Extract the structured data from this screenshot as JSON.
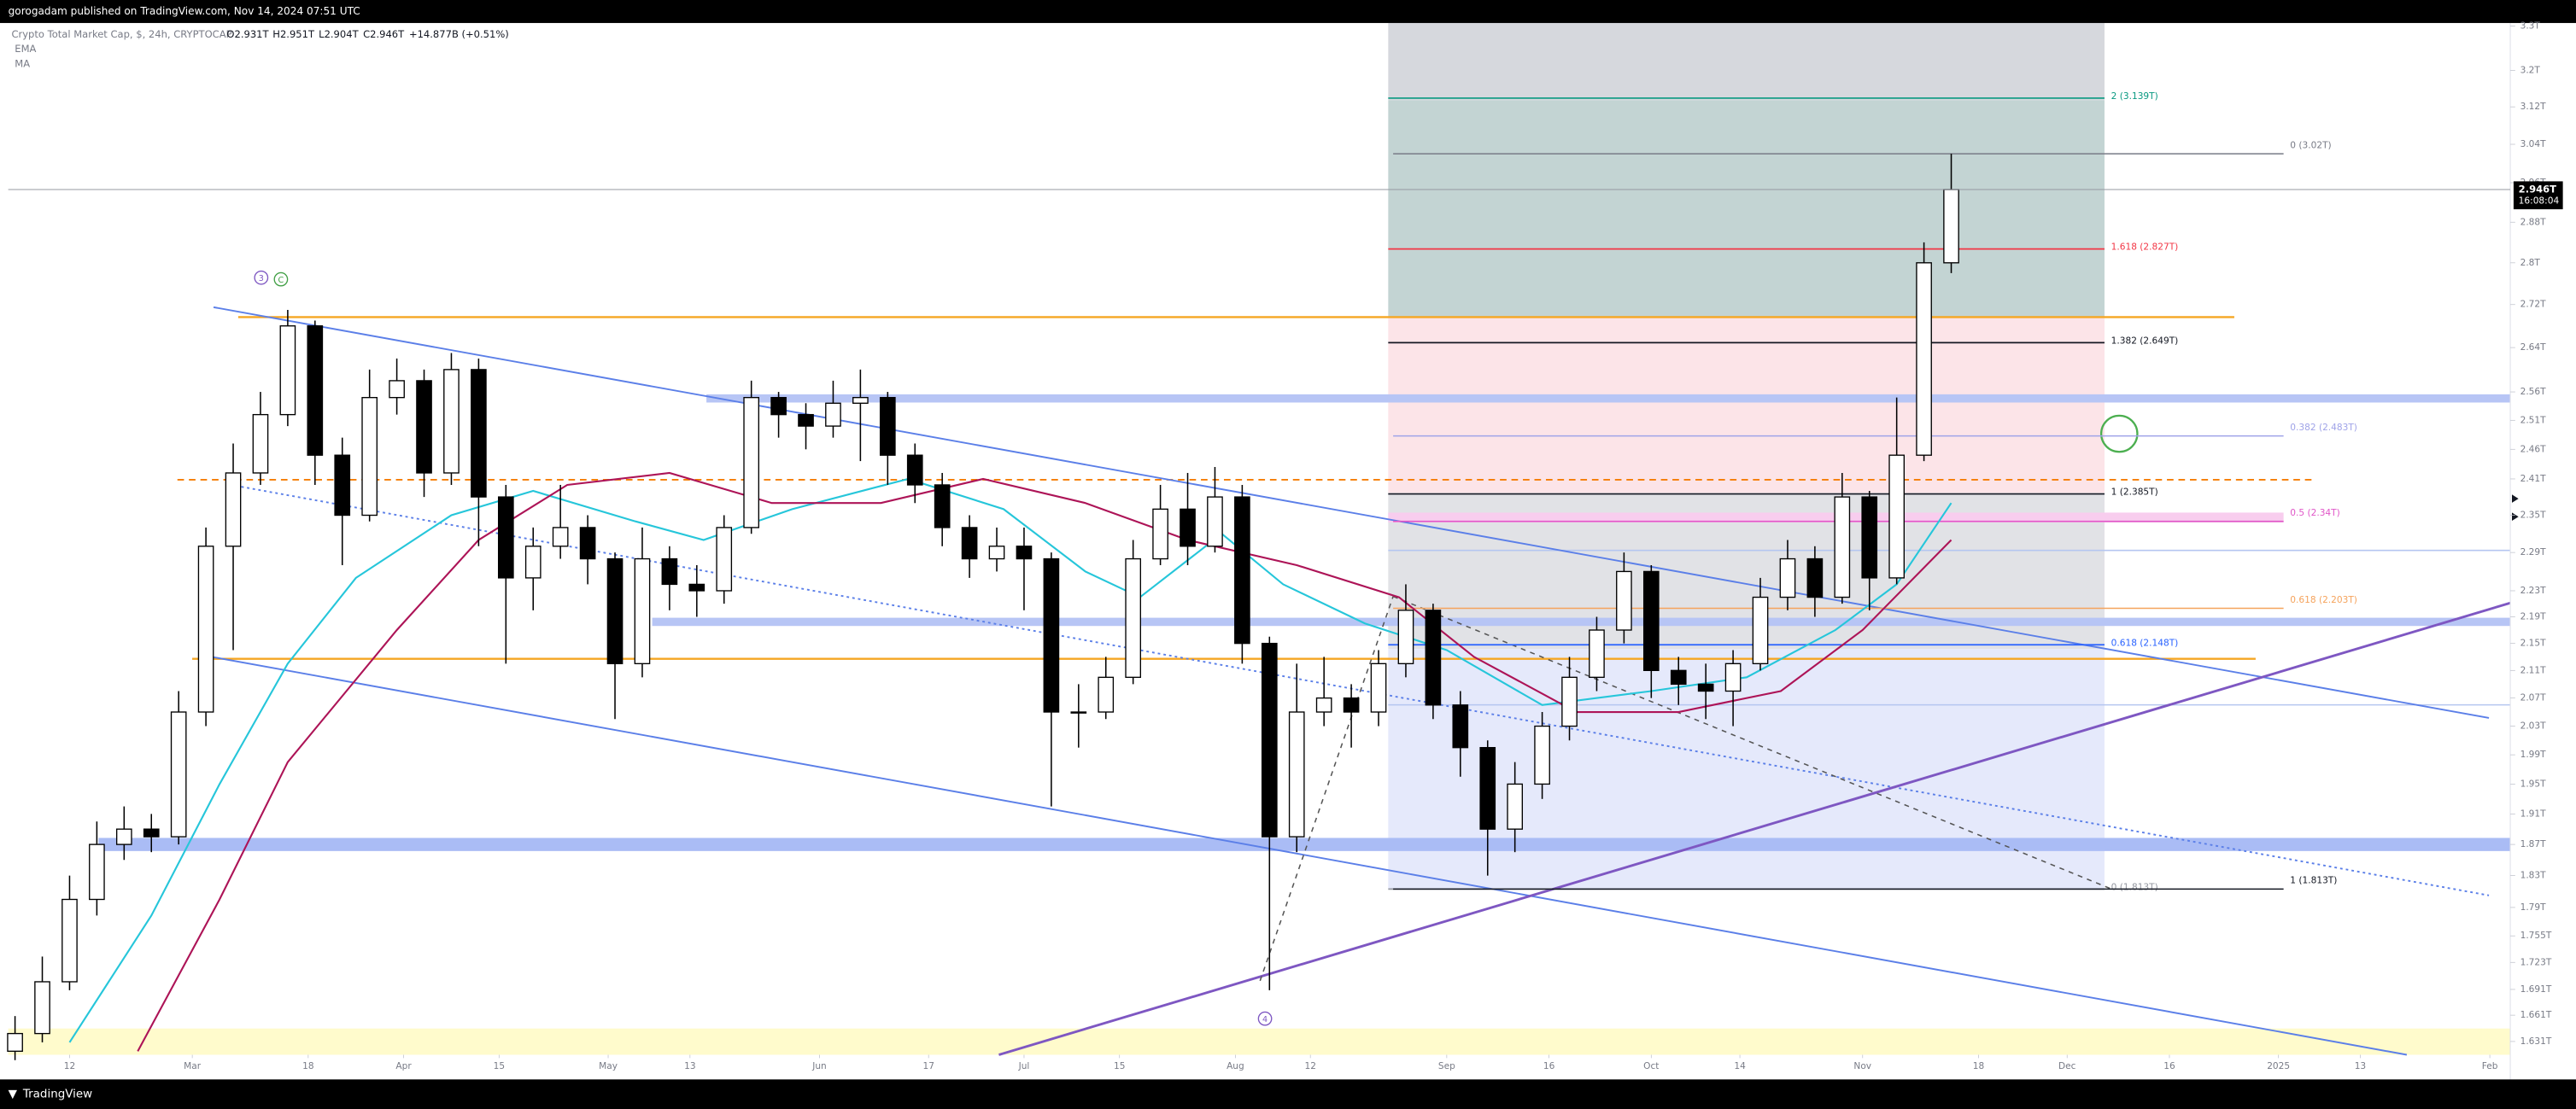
{
  "header": {
    "text": "gorogadam published on TradingView.com, Nov 14, 2024 07:51 UTC"
  },
  "footer": {
    "logo": "TradingView"
  },
  "chart_data": {
    "type": "candlestick",
    "title": "Crypto Total Market Cap, $, 24h, CRYPTOCAP",
    "ohlc_legend": [
      "O2.931T",
      "H2.951T",
      "L2.904T",
      "C2.946T",
      "+14.877B (+0.51%)"
    ],
    "x": [
      "2024-02-04",
      "2024-02-08",
      "2024-02-12",
      "2024-02-16",
      "2024-02-20",
      "2024-02-24",
      "2024-02-28",
      "2024-03-03",
      "2024-03-07",
      "2024-03-11",
      "2024-03-15",
      "2024-03-19",
      "2024-03-23",
      "2024-03-27",
      "2024-03-31",
      "2024-04-04",
      "2024-04-08",
      "2024-04-12",
      "2024-04-16",
      "2024-04-20",
      "2024-04-24",
      "2024-04-28",
      "2024-05-02",
      "2024-05-06",
      "2024-05-10",
      "2024-05-14",
      "2024-05-18",
      "2024-05-22",
      "2024-05-26",
      "2024-05-30",
      "2024-06-03",
      "2024-06-07",
      "2024-06-11",
      "2024-06-15",
      "2024-06-19",
      "2024-06-23",
      "2024-06-27",
      "2024-07-01",
      "2024-07-05",
      "2024-07-09",
      "2024-07-13",
      "2024-07-17",
      "2024-07-21",
      "2024-07-25",
      "2024-07-29",
      "2024-08-02",
      "2024-08-06",
      "2024-08-10",
      "2024-08-14",
      "2024-08-18",
      "2024-08-22",
      "2024-08-26",
      "2024-08-30",
      "2024-09-03",
      "2024-09-07",
      "2024-09-11",
      "2024-09-15",
      "2024-09-19",
      "2024-09-23",
      "2024-09-27",
      "2024-10-01",
      "2024-10-05",
      "2024-10-09",
      "2024-10-13",
      "2024-10-17",
      "2024-10-21",
      "2024-10-25",
      "2024-10-29",
      "2024-11-02",
      "2024-11-06",
      "2024-11-10",
      "2024-11-14"
    ],
    "open": [
      1.62,
      1.64,
      1.7,
      1.8,
      1.87,
      1.89,
      1.88,
      2.05,
      2.3,
      2.42,
      2.52,
      2.68,
      2.45,
      2.35,
      2.55,
      2.58,
      2.42,
      2.6,
      2.38,
      2.25,
      2.3,
      2.33,
      2.28,
      2.12,
      2.28,
      2.24,
      2.23,
      2.33,
      2.55,
      2.52,
      2.5,
      2.54,
      2.55,
      2.45,
      2.4,
      2.33,
      2.28,
      2.3,
      2.28,
      2.05,
      2.05,
      2.1,
      2.28,
      2.36,
      2.3,
      2.38,
      2.15,
      1.88,
      2.05,
      2.07,
      2.05,
      2.12,
      2.2,
      2.06,
      2.0,
      1.89,
      1.95,
      2.03,
      2.1,
      2.17,
      2.26,
      2.11,
      2.09,
      2.08,
      2.12,
      2.22,
      2.28,
      2.22,
      2.38,
      2.25,
      2.45,
      2.8
    ],
    "high": [
      1.66,
      1.73,
      1.83,
      1.9,
      1.92,
      1.91,
      2.08,
      2.33,
      2.47,
      2.56,
      2.71,
      2.69,
      2.48,
      2.6,
      2.62,
      2.6,
      2.63,
      2.62,
      2.4,
      2.33,
      2.4,
      2.35,
      2.29,
      2.33,
      2.3,
      2.27,
      2.35,
      2.58,
      2.56,
      2.54,
      2.58,
      2.6,
      2.56,
      2.47,
      2.42,
      2.35,
      2.33,
      2.33,
      2.29,
      2.09,
      2.13,
      2.31,
      2.4,
      2.42,
      2.43,
      2.4,
      2.16,
      2.12,
      2.13,
      2.09,
      2.14,
      2.24,
      2.21,
      2.08,
      2.01,
      1.98,
      2.05,
      2.13,
      2.19,
      2.29,
      2.27,
      2.13,
      2.12,
      2.14,
      2.25,
      2.31,
      2.3,
      2.42,
      2.39,
      2.55,
      2.84,
      3.02
    ],
    "low": [
      1.61,
      1.63,
      1.69,
      1.78,
      1.85,
      1.86,
      1.87,
      2.03,
      2.14,
      2.4,
      2.5,
      2.4,
      2.27,
      2.34,
      2.52,
      2.38,
      2.4,
      2.3,
      2.12,
      2.2,
      2.28,
      2.24,
      2.04,
      2.1,
      2.2,
      2.19,
      2.21,
      2.32,
      2.48,
      2.46,
      2.48,
      2.44,
      2.4,
      2.37,
      2.3,
      2.25,
      2.26,
      2.2,
      1.92,
      2.0,
      2.04,
      2.09,
      2.27,
      2.27,
      2.29,
      2.12,
      1.69,
      1.86,
      2.03,
      2.0,
      2.03,
      2.1,
      2.04,
      1.96,
      1.83,
      1.86,
      1.93,
      2.01,
      2.08,
      2.15,
      2.07,
      2.06,
      2.04,
      2.03,
      2.11,
      2.2,
      2.19,
      2.21,
      2.2,
      2.24,
      2.44,
      2.78
    ],
    "close": [
      1.64,
      1.7,
      1.8,
      1.87,
      1.89,
      1.88,
      2.05,
      2.3,
      2.42,
      2.52,
      2.68,
      2.45,
      2.35,
      2.55,
      2.58,
      2.42,
      2.6,
      2.38,
      2.25,
      2.3,
      2.33,
      2.28,
      2.12,
      2.28,
      2.24,
      2.23,
      2.33,
      2.55,
      2.52,
      2.5,
      2.54,
      2.55,
      2.45,
      2.4,
      2.33,
      2.28,
      2.3,
      2.28,
      2.05,
      2.05,
      2.1,
      2.28,
      2.36,
      2.3,
      2.38,
      2.15,
      1.88,
      2.05,
      2.07,
      2.05,
      2.12,
      2.2,
      2.06,
      2.0,
      1.89,
      1.95,
      2.03,
      2.1,
      2.17,
      2.26,
      2.11,
      2.09,
      2.08,
      2.12,
      2.22,
      2.28,
      2.22,
      2.38,
      2.25,
      2.45,
      2.8,
      2.946
    ],
    "up_color": "#ffffff",
    "down_color": "#000000",
    "indicators": [
      {
        "name": "EMA",
        "color": "#26c6da",
        "x": [
          "2024-02-12",
          "2024-02-24",
          "2024-03-05",
          "2024-03-15",
          "2024-03-25",
          "2024-04-08",
          "2024-04-20",
          "2024-05-05",
          "2024-05-15",
          "2024-05-28",
          "2024-06-14",
          "2024-06-28",
          "2024-07-10",
          "2024-07-18",
          "2024-07-30",
          "2024-08-08",
          "2024-08-20",
          "2024-09-01",
          "2024-09-15",
          "2024-10-01",
          "2024-10-15",
          "2024-10-28",
          "2024-11-06",
          "2024-11-14"
        ],
        "values": [
          1.63,
          1.78,
          1.95,
          2.12,
          2.25,
          2.35,
          2.39,
          2.34,
          2.31,
          2.36,
          2.41,
          2.36,
          2.26,
          2.22,
          2.32,
          2.24,
          2.18,
          2.14,
          2.06,
          2.08,
          2.1,
          2.17,
          2.24,
          2.37
        ]
      },
      {
        "name": "MA",
        "color": "#ad1457",
        "x": [
          "2024-02-22",
          "2024-03-05",
          "2024-03-15",
          "2024-03-31",
          "2024-04-12",
          "2024-04-25",
          "2024-05-10",
          "2024-05-25",
          "2024-06-10",
          "2024-06-25",
          "2024-07-10",
          "2024-07-25",
          "2024-08-10",
          "2024-08-25",
          "2024-09-05",
          "2024-09-20",
          "2024-10-05",
          "2024-10-20",
          "2024-11-01",
          "2024-11-14"
        ],
        "values": [
          1.62,
          1.8,
          1.98,
          2.17,
          2.31,
          2.4,
          2.42,
          2.37,
          2.37,
          2.41,
          2.37,
          2.31,
          2.27,
          2.22,
          2.13,
          2.05,
          2.05,
          2.08,
          2.17,
          2.31
        ]
      }
    ],
    "xlim": [
      "2024-02-03",
      "2025-02-04"
    ],
    "xticks": [
      {
        "value": "2024-02-12",
        "label": "12"
      },
      {
        "value": "2024-03-01",
        "label": "Mar"
      },
      {
        "value": "2024-03-18",
        "label": "18"
      },
      {
        "value": "2024-04-01",
        "label": "Apr"
      },
      {
        "value": "2024-04-15",
        "label": "15"
      },
      {
        "value": "2024-05-01",
        "label": "May"
      },
      {
        "value": "2024-05-13",
        "label": "13"
      },
      {
        "value": "2024-06-01",
        "label": "Jun"
      },
      {
        "value": "2024-06-17",
        "label": "17"
      },
      {
        "value": "2024-07-01",
        "label": "Jul"
      },
      {
        "value": "2024-07-15",
        "label": "15"
      },
      {
        "value": "2024-08-01",
        "label": "Aug"
      },
      {
        "value": "2024-08-12",
        "label": "12"
      },
      {
        "value": "2024-09-01",
        "label": "Sep"
      },
      {
        "value": "2024-09-16",
        "label": "16"
      },
      {
        "value": "2024-10-01",
        "label": "Oct"
      },
      {
        "value": "2024-10-14",
        "label": "14"
      },
      {
        "value": "2024-11-01",
        "label": "Nov"
      },
      {
        "value": "2024-11-18",
        "label": "18"
      },
      {
        "value": "2024-12-01",
        "label": "Dec"
      },
      {
        "value": "2024-12-16",
        "label": "16"
      },
      {
        "value": "2025-01-01",
        "label": "2025"
      },
      {
        "value": "2025-01-13",
        "label": "13"
      },
      {
        "value": "2025-02-01",
        "label": "Feb"
      }
    ],
    "ylim": [
      1.616,
      3.307
    ],
    "log_scale": true,
    "grid": false,
    "yticks": [
      {
        "value": 3.3,
        "label": "3.3T"
      },
      {
        "value": 3.2,
        "label": "3.2T"
      },
      {
        "value": 3.12,
        "label": "3.12T"
      },
      {
        "value": 3.04,
        "label": "3.04T"
      },
      {
        "value": 2.96,
        "label": "2.96T"
      },
      {
        "value": 2.88,
        "label": "2.88T"
      },
      {
        "value": 2.8,
        "label": "2.8T"
      },
      {
        "value": 2.72,
        "label": "2.72T"
      },
      {
        "value": 2.64,
        "label": "2.64T"
      },
      {
        "value": 2.56,
        "label": "2.56T"
      },
      {
        "value": 2.51,
        "label": "2.51T"
      },
      {
        "value": 2.46,
        "label": "2.46T"
      },
      {
        "value": 2.41,
        "label": "2.41T"
      },
      {
        "value": 2.35,
        "label": "2.35T"
      },
      {
        "value": 2.29,
        "label": "2.29T"
      },
      {
        "value": 2.23,
        "label": "2.23T"
      },
      {
        "value": 2.19,
        "label": "2.19T"
      },
      {
        "value": 2.15,
        "label": "2.15T"
      },
      {
        "value": 2.11,
        "label": "2.11T"
      },
      {
        "value": 2.07,
        "label": "2.07T"
      },
      {
        "value": 2.03,
        "label": "2.03T"
      },
      {
        "value": 1.99,
        "label": "1.99T"
      },
      {
        "value": 1.95,
        "label": "1.95T"
      },
      {
        "value": 1.91,
        "label": "1.91T"
      },
      {
        "value": 1.87,
        "label": "1.87T"
      },
      {
        "value": 1.83,
        "label": "1.83T"
      },
      {
        "value": 1.79,
        "label": "1.79T"
      },
      {
        "value": 1.755,
        "label": "1.755T"
      },
      {
        "value": 1.723,
        "label": "1.723T"
      },
      {
        "value": 1.691,
        "label": "1.691T"
      },
      {
        "value": 1.661,
        "label": "1.661T"
      },
      {
        "value": 1.631,
        "label": "1.631T"
      }
    ],
    "last_price": {
      "value": 2.946,
      "label": "2.946T"
    },
    "countdown": "16:08:04",
    "position_levels": [
      {
        "value": 3.139,
        "label": "2 (3.139T)",
        "color": "#089981"
      },
      {
        "value": 2.827,
        "label": "1.618 (2.827T)",
        "color": "#f23645"
      },
      {
        "value": 2.649,
        "label": "1.382 (2.649T)",
        "color": "#131722"
      },
      {
        "value": 2.385,
        "label": "1 (2.385T)",
        "color": "#131722"
      },
      {
        "value": 2.148,
        "label": "0.618 (2.148T)",
        "color": "#2962ff"
      },
      {
        "value": 1.813,
        "label": "0 (1.813T)",
        "color": "#9598a1"
      }
    ],
    "retracement_levels": [
      {
        "value": 3.02,
        "label": "0 (3.02T)",
        "color": "#787b86"
      },
      {
        "value": 2.483,
        "label": "0.382 (2.483T)",
        "color": "#9fa3e8"
      },
      {
        "value": 2.34,
        "label": "0.5 (2.34T)",
        "color": "#e056c8"
      },
      {
        "value": 2.203,
        "label": "0.618 (2.203T)",
        "color": "#f5a35c"
      },
      {
        "value": 1.813,
        "label": "1 (1.813T)",
        "color": "#131722"
      }
    ],
    "wave_labels": [
      "3",
      "C",
      "4"
    ]
  }
}
